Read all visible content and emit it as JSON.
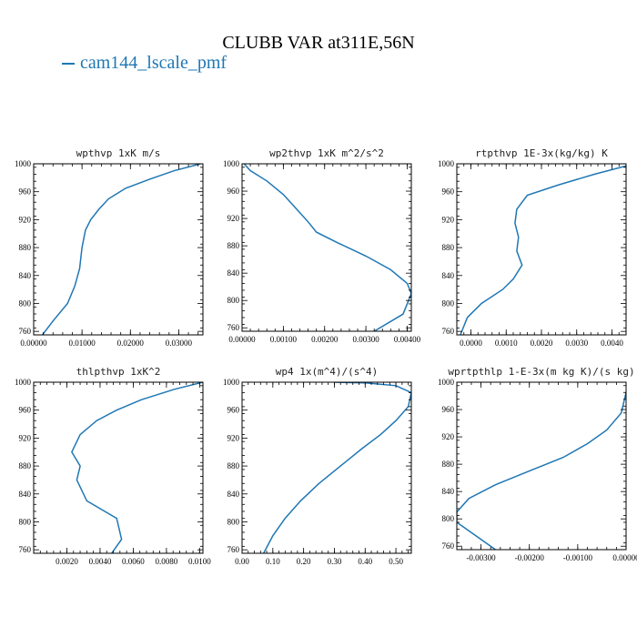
{
  "title": "CLUBB VAR at311E,56N",
  "legend": {
    "label": "cam144_lscale_pmf",
    "color": "#1f77b4"
  },
  "y_axis": {
    "ylim": [
      760,
      1000
    ],
    "inverted": true,
    "ticks": [
      760,
      800,
      840,
      880,
      920,
      960,
      1000
    ]
  },
  "chart_data": [
    {
      "type": "line",
      "title": "wpthvp  1xK m/s",
      "xlim": [
        0.0,
        0.035
      ],
      "xticks": [
        0.0,
        0.01,
        0.02,
        0.03
      ],
      "xtick_labels": [
        "0.00000",
        "0.01000",
        "0.02000",
        "0.03000"
      ],
      "ylim": [
        1000,
        755
      ],
      "ytick_pos": [
        760,
        800,
        840,
        880,
        920,
        960,
        1000
      ],
      "yticks": [
        "760",
        "800",
        "840",
        "880",
        "920",
        "960",
        "1000"
      ],
      "series": [
        {
          "x": [
            0.0018,
            0.004,
            0.007,
            0.0085,
            0.0095,
            0.01,
            0.0107,
            0.0118,
            0.0135,
            0.0155,
            0.019,
            0.024,
            0.029,
            0.0345
          ],
          "y": [
            755,
            775,
            800,
            825,
            850,
            880,
            905,
            920,
            935,
            950,
            965,
            978,
            990,
            1000
          ]
        }
      ]
    },
    {
      "type": "line",
      "title": "wp2thvp  1xK m^2/s^2",
      "xlim": [
        0.0,
        0.0041
      ],
      "xticks": [
        0.0,
        0.001,
        0.002,
        0.003,
        0.004
      ],
      "xtick_labels": [
        "0.00000",
        "0.00100",
        "0.00200",
        "0.00300",
        "0.00400"
      ],
      "ylim": [
        1000,
        755
      ],
      "ytick_pos": [
        760,
        800,
        840,
        880,
        920,
        960,
        1000
      ],
      "yticks": [
        "760",
        "800",
        "840",
        "880",
        "920",
        "960",
        "1000"
      ],
      "series": [
        {
          "x": [
            0.0032,
            0.0039,
            0.0041,
            0.004,
            0.0036,
            0.003,
            0.0023,
            0.0018,
            0.0016,
            0.0013,
            0.001,
            0.0006,
            0.0002,
            5e-05
          ],
          "y": [
            755,
            780,
            810,
            825,
            845,
            865,
            885,
            900,
            915,
            935,
            955,
            975,
            990,
            1000
          ]
        }
      ]
    },
    {
      "type": "line",
      "title": "rtpthvp  1E-3x(kg/kg) K",
      "xlim": [
        -0.0004,
        0.0044
      ],
      "xticks": [
        0.0,
        0.001,
        0.002,
        0.003,
        0.004
      ],
      "xtick_labels": [
        "0.0000",
        "0.0010",
        "0.0020",
        "0.0030",
        "0.0040"
      ],
      "ylim": [
        1000,
        755
      ],
      "ytick_pos": [
        760,
        800,
        840,
        880,
        920,
        960,
        1000
      ],
      "yticks": [
        "760",
        "800",
        "840",
        "880",
        "920",
        "960",
        "1000"
      ],
      "series": [
        {
          "x": [
            -0.0003,
            -0.0001,
            0.0003,
            0.0009,
            0.0012,
            0.00145,
            0.0013,
            0.00135,
            0.00125,
            0.0013,
            0.0016,
            0.0025,
            0.0035,
            0.0044
          ],
          "y": [
            755,
            780,
            800,
            820,
            835,
            855,
            875,
            895,
            915,
            935,
            955,
            970,
            985,
            997
          ]
        }
      ]
    },
    {
      "type": "line",
      "title": "thlpthvp  1xK^2",
      "xlim": [
        0.0,
        0.0102
      ],
      "xticks": [
        0.002,
        0.004,
        0.006,
        0.008,
        0.01
      ],
      "xtick_labels": [
        "0.0020",
        "0.0040",
        "0.0060",
        "0.0080",
        "0.0100"
      ],
      "ylim": [
        1000,
        755
      ],
      "ytick_pos": [
        760,
        800,
        840,
        880,
        920,
        960,
        1000
      ],
      "yticks": [
        "760",
        "800",
        "840",
        "880",
        "920",
        "960",
        "1000"
      ],
      "series": [
        {
          "x": [
            0.0047,
            0.0053,
            0.005,
            0.0032,
            0.0026,
            0.0028,
            0.0023,
            0.0028,
            0.0038,
            0.005,
            0.0065,
            0.0085,
            0.0102
          ],
          "y": [
            755,
            775,
            805,
            830,
            860,
            880,
            900,
            925,
            945,
            960,
            975,
            990,
            1000
          ]
        }
      ]
    },
    {
      "type": "line",
      "title": "wp4  1x(m^4)/(s^4)",
      "xlim": [
        0.0,
        0.55
      ],
      "xticks": [
        0.0,
        0.1,
        0.2,
        0.3,
        0.4,
        0.5
      ],
      "xtick_labels": [
        "0.00",
        "0.10",
        "0.20",
        "0.30",
        "0.40",
        "0.50"
      ],
      "ylim": [
        1000,
        755
      ],
      "ytick_pos": [
        760,
        800,
        840,
        880,
        920,
        960,
        1000
      ],
      "yticks": [
        "760",
        "800",
        "840",
        "880",
        "920",
        "960",
        "1000"
      ],
      "series": [
        {
          "x": [
            0.07,
            0.1,
            0.14,
            0.19,
            0.25,
            0.32,
            0.39,
            0.45,
            0.5,
            0.54,
            0.55,
            0.5,
            0.4,
            0.3
          ],
          "y": [
            755,
            780,
            805,
            830,
            855,
            880,
            905,
            925,
            945,
            965,
            985,
            995,
            999,
            1000
          ]
        }
      ]
    },
    {
      "type": "line",
      "title": "wprtpthlp  1-E-3x(m kg K)/(s kg)",
      "xlim": [
        -0.0035,
        0.0
      ],
      "xticks": [
        -0.003,
        -0.002,
        -0.001,
        0.0
      ],
      "xtick_labels": [
        "-0.00300",
        "-0.00200",
        "-0.00100",
        "0.00000"
      ],
      "ylim": [
        1000,
        755
      ],
      "ytick_pos": [
        760,
        800,
        840,
        880,
        920,
        960,
        1000
      ],
      "yticks": [
        "760",
        "800",
        "840",
        "880",
        "920",
        "960",
        "1000"
      ],
      "series": [
        {
          "x": [
            -0.0027,
            -0.0031,
            -0.0035,
            -0.0035,
            -0.00325,
            -0.0027,
            -0.002,
            -0.0013,
            -0.0008,
            -0.0004,
            -0.0001,
            0.0
          ],
          "y": [
            755,
            775,
            795,
            810,
            830,
            850,
            870,
            890,
            910,
            930,
            955,
            985
          ]
        }
      ]
    }
  ]
}
